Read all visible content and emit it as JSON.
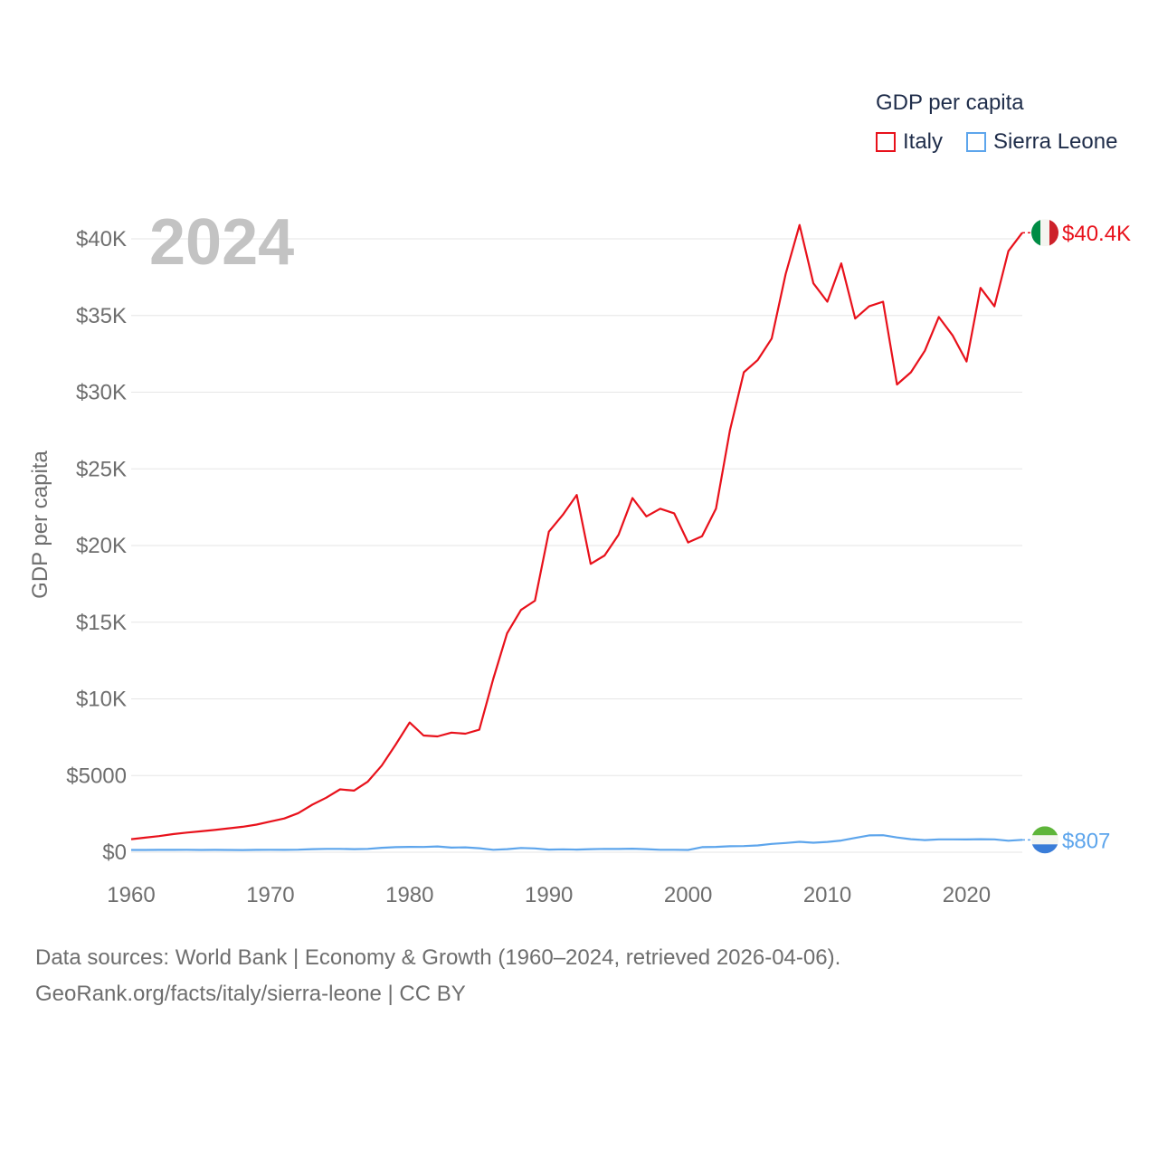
{
  "legend": {
    "title": "GDP per capita",
    "series_labels": [
      "Italy",
      "Sierra Leone"
    ]
  },
  "year_label": "2024",
  "footer": {
    "line1": "Data sources: World Bank | Economy & Growth (1960–2024, retrieved 2026-04-06).",
    "line2": "GeoRank.org/facts/italy/sierra-leone | CC BY"
  },
  "chart_data": {
    "type": "line",
    "title": "GDP per capita",
    "xlabel": "",
    "ylabel": "GDP per capita",
    "xlim": [
      1960,
      2024
    ],
    "ylim": [
      0,
      42000
    ],
    "xticks": [
      1960,
      1970,
      1980,
      1990,
      2000,
      2010,
      2020
    ],
    "xtick_labels": [
      "1960",
      "1970",
      "1980",
      "1990",
      "2000",
      "2010",
      "2020"
    ],
    "yticks": [
      0,
      5000,
      10000,
      15000,
      20000,
      25000,
      30000,
      35000,
      40000
    ],
    "ytick_labels": [
      "$0",
      "$5000",
      "$10K",
      "$15K",
      "$20K",
      "$25K",
      "$30K",
      "$35K",
      "$40K"
    ],
    "grid": true,
    "legend_position": "top-right",
    "x": [
      1960,
      1961,
      1962,
      1963,
      1964,
      1965,
      1966,
      1967,
      1968,
      1969,
      1970,
      1971,
      1972,
      1973,
      1974,
      1975,
      1976,
      1977,
      1978,
      1979,
      1980,
      1981,
      1982,
      1983,
      1984,
      1985,
      1986,
      1987,
      1988,
      1989,
      1990,
      1991,
      1992,
      1993,
      1994,
      1995,
      1996,
      1997,
      1998,
      1999,
      2000,
      2001,
      2002,
      2003,
      2004,
      2005,
      2006,
      2007,
      2008,
      2009,
      2010,
      2011,
      2012,
      2013,
      2014,
      2015,
      2016,
      2017,
      2018,
      2019,
      2020,
      2021,
      2022,
      2023,
      2024
    ],
    "series": [
      {
        "name": "Italy",
        "color": "#e8111b",
        "end_label": "$40.4K",
        "values": [
          850,
          950,
          1050,
          1180,
          1280,
          1360,
          1450,
          1560,
          1660,
          1800,
          2000,
          2200,
          2550,
          3100,
          3550,
          4100,
          4020,
          4610,
          5650,
          7020,
          8460,
          7610,
          7550,
          7800,
          7730,
          7990,
          11300,
          14270,
          15800,
          16400,
          20900,
          22000,
          23300,
          18800,
          19350,
          20700,
          23100,
          21900,
          22400,
          22100,
          20200,
          20600,
          22400,
          27500,
          31300,
          32100,
          33500,
          37700,
          40900,
          37100,
          35900,
          38400,
          34800,
          35600,
          35900,
          30500,
          31300,
          32700,
          34900,
          33700,
          32000,
          36800,
          35600,
          39200,
          40400
        ]
      },
      {
        "name": "Sierra Leone",
        "color": "#5da5ec",
        "end_label": "$807",
        "values": [
          150,
          150,
          155,
          155,
          160,
          150,
          155,
          150,
          140,
          155,
          160,
          155,
          165,
          200,
          220,
          220,
          200,
          220,
          290,
          330,
          350,
          340,
          380,
          300,
          320,
          260,
          160,
          200,
          280,
          250,
          170,
          190,
          170,
          200,
          220,
          210,
          230,
          200,
          160,
          160,
          150,
          330,
          350,
          390,
          400,
          440,
          540,
          600,
          680,
          620,
          670,
          760,
          930,
          1100,
          1110,
          960,
          850,
          790,
          840,
          840,
          830,
          850,
          840,
          750,
          807
        ]
      }
    ]
  }
}
